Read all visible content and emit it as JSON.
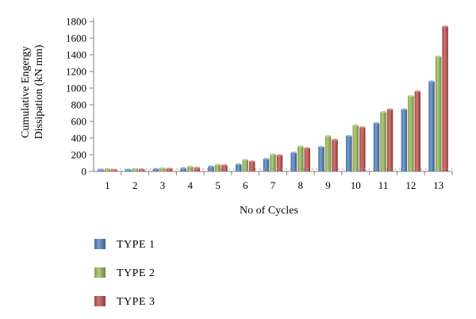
{
  "chart_data": {
    "type": "bar",
    "title": "",
    "xlabel": "No of Cycles",
    "ylabel": [
      "Cumulative Engergy",
      "Dissipation (kN mm)"
    ],
    "categories": [
      "1",
      "2",
      "3",
      "4",
      "5",
      "6",
      "7",
      "8",
      "9",
      "10",
      "11",
      "12",
      "13"
    ],
    "ylim": [
      0,
      1800
    ],
    "yticks": [
      0,
      200,
      400,
      600,
      800,
      1000,
      1200,
      1400,
      1600,
      1800
    ],
    "grid": false,
    "legend": "bottom-left",
    "series": [
      {
        "name": "TYPE 1",
        "color": "#4F81BD",
        "values": [
          22,
          22,
          30,
          40,
          60,
          85,
          150,
          225,
          295,
          425,
          580,
          745,
          1080
        ]
      },
      {
        "name": "TYPE 2",
        "color": "#9BBB59",
        "values": [
          30,
          30,
          38,
          58,
          82,
          140,
          205,
          300,
          425,
          555,
          715,
          905,
          1380
        ]
      },
      {
        "name": "TYPE 3",
        "color": "#C0504D",
        "values": [
          20,
          25,
          33,
          45,
          75,
          120,
          195,
          280,
          380,
          530,
          745,
          960,
          1740
        ]
      }
    ]
  }
}
